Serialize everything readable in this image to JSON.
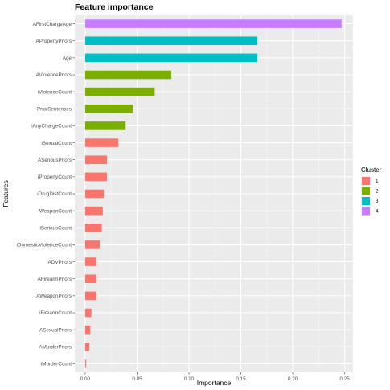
{
  "chart_data": {
    "type": "bar",
    "orientation": "horizontal",
    "title": "Feature importance",
    "xlabel": "Importance",
    "ylabel": "Features",
    "xlim": [
      -0.01,
      0.258
    ],
    "xticks": [
      0.0,
      0.05,
      0.1,
      0.15,
      0.2,
      0.25
    ],
    "xtick_labels": [
      "0.00",
      "0.05",
      "0.10",
      "0.15",
      "0.20",
      "0.25"
    ],
    "grid": true,
    "legend": {
      "title": "Cluster",
      "position": "right",
      "entries": [
        {
          "label": "1",
          "color": "#F8766D"
        },
        {
          "label": "2",
          "color": "#7CAE00"
        },
        {
          "label": "3",
          "color": "#00BFC4"
        },
        {
          "label": "4",
          "color": "#C77CFF"
        }
      ]
    },
    "bars": [
      {
        "feature": "AFirstChargeAge",
        "value": 0.247,
        "cluster": "4"
      },
      {
        "feature": "APropertyPriors",
        "value": 0.166,
        "cluster": "3"
      },
      {
        "feature": "Age",
        "value": 0.166,
        "cluster": "3"
      },
      {
        "feature": "AViolencePriors",
        "value": 0.083,
        "cluster": "2"
      },
      {
        "feature": "iViolenceCount",
        "value": 0.067,
        "cluster": "2"
      },
      {
        "feature": "PriorSentences",
        "value": 0.046,
        "cluster": "2"
      },
      {
        "feature": "iAnyChargeCount",
        "value": 0.039,
        "cluster": "2"
      },
      {
        "feature": "iSexualCount",
        "value": 0.032,
        "cluster": "1"
      },
      {
        "feature": "ASeriousPriors",
        "value": 0.021,
        "cluster": "1"
      },
      {
        "feature": "iPropertyCount",
        "value": 0.021,
        "cluster": "1"
      },
      {
        "feature": "iDrugDistCount",
        "value": 0.018,
        "cluster": "1"
      },
      {
        "feature": "iWeaponCount",
        "value": 0.017,
        "cluster": "1"
      },
      {
        "feature": "iSeriousCount",
        "value": 0.016,
        "cluster": "1"
      },
      {
        "feature": "iDomesticViolenceCount",
        "value": 0.014,
        "cluster": "1"
      },
      {
        "feature": "ADVPriors",
        "value": 0.011,
        "cluster": "1"
      },
      {
        "feature": "AFirearmPriors",
        "value": 0.011,
        "cluster": "1"
      },
      {
        "feature": "AWeaponPriors",
        "value": 0.011,
        "cluster": "1"
      },
      {
        "feature": "iFirearmCount",
        "value": 0.006,
        "cluster": "1"
      },
      {
        "feature": "ASexualPriors",
        "value": 0.005,
        "cluster": "1"
      },
      {
        "feature": "AMurderPriors",
        "value": 0.004,
        "cluster": "1"
      },
      {
        "feature": "iMurderCount",
        "value": 0.001,
        "cluster": "1"
      }
    ]
  }
}
